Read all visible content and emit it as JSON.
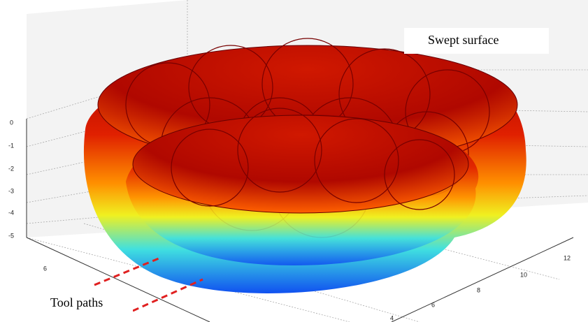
{
  "annotations": {
    "surface": "Swept surface",
    "paths": "Tool paths"
  },
  "axes": {
    "z_ticks": [
      0,
      -1,
      -2,
      -3,
      -4,
      -5
    ],
    "y_ticks": [
      6
    ],
    "x_ticks": [
      12,
      10,
      8,
      6,
      4
    ]
  }
}
